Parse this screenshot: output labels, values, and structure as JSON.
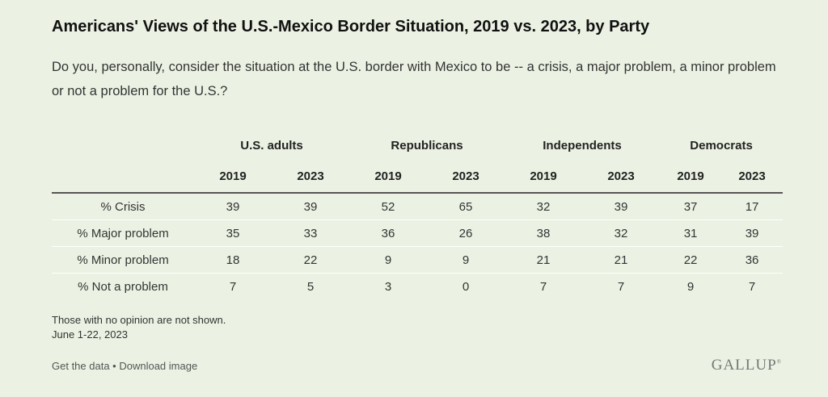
{
  "title": "Americans' Views of the U.S.-Mexico Border Situation, 2019 vs. 2023, by Party",
  "subtitle": "Do you, personally, consider the situation at the U.S. border with Mexico to be -- a crisis, a major problem, a minor problem or not a problem for the U.S.?",
  "footnote": {
    "line1": "Those with no opinion are not shown.",
    "line2": "June 1-22, 2023"
  },
  "links": {
    "get_data": "Get the data",
    "separator": " • ",
    "download": "Download image"
  },
  "logo": {
    "text": "GALLUP",
    "mark": "®"
  },
  "chart_data": {
    "type": "table",
    "groups": [
      "U.S. adults",
      "Republicans",
      "Independents",
      "Democrats"
    ],
    "years": [
      "2019",
      "2023"
    ],
    "rows": [
      {
        "label": "% Crisis",
        "values": [
          39,
          39,
          52,
          65,
          32,
          39,
          37,
          17
        ]
      },
      {
        "label": "% Major problem",
        "values": [
          35,
          33,
          36,
          26,
          38,
          32,
          31,
          39
        ]
      },
      {
        "label": "% Minor problem",
        "values": [
          18,
          22,
          9,
          9,
          21,
          21,
          22,
          36
        ]
      },
      {
        "label": "% Not a problem",
        "values": [
          7,
          5,
          3,
          0,
          7,
          7,
          9,
          7
        ]
      }
    ]
  }
}
